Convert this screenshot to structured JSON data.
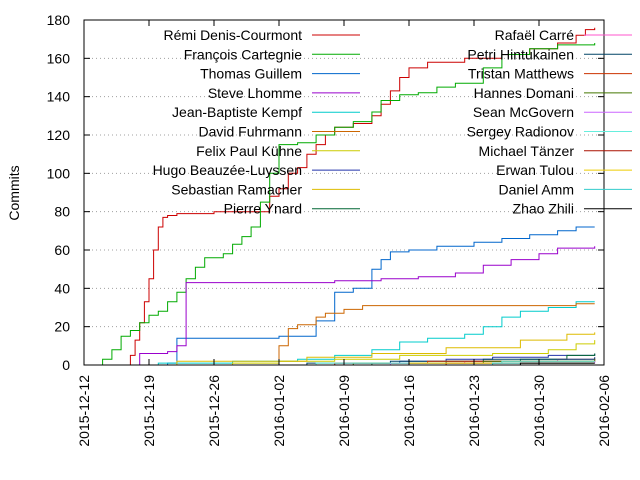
{
  "chart_data": {
    "type": "line",
    "line_shape": "step",
    "ylabel": "Commits",
    "xlabel": "",
    "title": "",
    "ylim": [
      0,
      180
    ],
    "xlim": [
      "2015-12-12",
      "2016-02-06"
    ],
    "y_ticks": [
      0,
      20,
      40,
      60,
      80,
      100,
      120,
      140,
      160,
      180
    ],
    "x_ticks": [
      "2015-12-12",
      "2015-12-19",
      "2015-12-26",
      "2016-01-02",
      "2016-01-09",
      "2016-01-16",
      "2016-01-23",
      "2016-01-30",
      "2016-02-06"
    ],
    "grid": "horizontal dotted at y ticks",
    "legend": "inside plot, top, two columns",
    "series": [
      {
        "name": "Rémi Denis-Courmont",
        "color": "#cc0000",
        "points": [
          [
            "2015-12-17",
            0
          ],
          [
            "2015-12-17",
            5
          ],
          [
            "2015-12-17.5",
            13
          ],
          [
            "2015-12-18",
            22
          ],
          [
            "2015-12-18.5",
            33
          ],
          [
            "2015-12-19",
            45
          ],
          [
            "2015-12-19.5",
            60
          ],
          [
            "2015-12-20",
            72
          ],
          [
            "2015-12-20.5",
            77
          ],
          [
            "2015-12-21",
            78
          ],
          [
            "2015-12-22",
            79
          ],
          [
            "2015-12-26",
            80
          ],
          [
            "2015-12-31",
            80
          ],
          [
            "2016-01-01",
            88
          ],
          [
            "2016-01-02",
            92
          ],
          [
            "2016-01-03",
            100
          ],
          [
            "2016-01-04",
            103
          ],
          [
            "2016-01-05",
            110
          ],
          [
            "2016-01-06",
            115
          ],
          [
            "2016-01-07",
            120
          ],
          [
            "2016-01-08",
            124
          ],
          [
            "2016-01-10",
            126
          ],
          [
            "2016-01-12",
            130
          ],
          [
            "2016-01-13",
            136
          ],
          [
            "2016-01-14",
            143
          ],
          [
            "2016-01-15",
            150
          ],
          [
            "2016-01-16",
            155
          ],
          [
            "2016-01-18",
            158
          ],
          [
            "2016-01-22",
            160
          ],
          [
            "2016-01-26",
            162
          ],
          [
            "2016-01-29",
            165
          ],
          [
            "2016-02-01",
            168
          ],
          [
            "2016-02-03",
            172
          ],
          [
            "2016-02-04",
            175
          ],
          [
            "2016-02-05",
            176
          ]
        ]
      },
      {
        "name": "François Cartegnie",
        "color": "#00aa00",
        "points": [
          [
            "2015-12-14",
            0
          ],
          [
            "2015-12-14",
            3
          ],
          [
            "2015-12-15",
            8
          ],
          [
            "2015-12-16",
            15
          ],
          [
            "2015-12-17",
            18
          ],
          [
            "2015-12-18",
            22
          ],
          [
            "2015-12-19",
            26
          ],
          [
            "2015-12-20",
            28
          ],
          [
            "2015-12-21",
            33
          ],
          [
            "2015-12-22",
            38
          ],
          [
            "2015-12-23",
            45
          ],
          [
            "2015-12-24",
            51
          ],
          [
            "2015-12-25",
            56
          ],
          [
            "2015-12-27",
            58
          ],
          [
            "2015-12-28",
            63
          ],
          [
            "2015-12-29",
            67
          ],
          [
            "2015-12-30",
            72
          ],
          [
            "2015-12-31",
            85
          ],
          [
            "2016-01-01",
            100
          ],
          [
            "2016-01-02",
            115
          ],
          [
            "2016-01-04",
            116
          ],
          [
            "2016-01-06",
            120
          ],
          [
            "2016-01-08",
            124
          ],
          [
            "2016-01-10",
            127
          ],
          [
            "2016-01-12",
            132
          ],
          [
            "2016-01-13",
            138
          ],
          [
            "2016-01-15",
            141
          ],
          [
            "2016-01-17",
            142
          ],
          [
            "2016-01-19",
            145
          ],
          [
            "2016-01-21",
            147
          ],
          [
            "2016-01-24",
            155
          ],
          [
            "2016-01-26",
            162
          ],
          [
            "2016-01-29",
            165
          ],
          [
            "2016-02-01",
            167
          ],
          [
            "2016-02-05",
            168
          ]
        ]
      },
      {
        "name": "Thomas Guillem",
        "color": "#0066cc",
        "points": [
          [
            "2015-12-17",
            0
          ],
          [
            "2015-12-21",
            1
          ],
          [
            "2015-12-22",
            14
          ],
          [
            "2016-01-02",
            15
          ],
          [
            "2016-01-06",
            23
          ],
          [
            "2016-01-08",
            38
          ],
          [
            "2016-01-10",
            40
          ],
          [
            "2016-01-12",
            50
          ],
          [
            "2016-01-13",
            55
          ],
          [
            "2016-01-14",
            59
          ],
          [
            "2016-01-16",
            60
          ],
          [
            "2016-01-19",
            62
          ],
          [
            "2016-01-23",
            64
          ],
          [
            "2016-01-26",
            66
          ],
          [
            "2016-01-29",
            68
          ],
          [
            "2016-02-01",
            70
          ],
          [
            "2016-02-03",
            72
          ],
          [
            "2016-02-05",
            72
          ]
        ]
      },
      {
        "name": "Steve Lhomme",
        "color": "#9900cc",
        "points": [
          [
            "2015-12-17",
            0
          ],
          [
            "2015-12-18",
            6
          ],
          [
            "2015-12-21",
            7
          ],
          [
            "2015-12-22",
            10
          ],
          [
            "2015-12-23",
            43
          ],
          [
            "2016-01-02",
            43
          ],
          [
            "2016-01-08",
            44
          ],
          [
            "2016-01-13",
            45
          ],
          [
            "2016-01-17",
            46
          ],
          [
            "2016-01-21",
            48
          ],
          [
            "2016-01-24",
            52
          ],
          [
            "2016-01-27",
            55
          ],
          [
            "2016-01-30",
            58
          ],
          [
            "2016-02-01",
            61
          ],
          [
            "2016-02-05",
            62
          ]
        ]
      },
      {
        "name": "Jean-Baptiste Kempf",
        "color": "#00cccc",
        "points": [
          [
            "2015-12-14",
            0
          ],
          [
            "2015-12-20",
            1
          ],
          [
            "2015-12-28",
            2
          ],
          [
            "2016-01-04",
            3
          ],
          [
            "2016-01-08",
            5
          ],
          [
            "2016-01-12",
            8
          ],
          [
            "2016-01-15",
            12
          ],
          [
            "2016-01-18",
            14
          ],
          [
            "2016-01-22",
            16
          ],
          [
            "2016-01-24",
            20
          ],
          [
            "2016-01-26",
            25
          ],
          [
            "2016-01-28",
            28
          ],
          [
            "2016-01-31",
            30
          ],
          [
            "2016-02-03",
            33
          ],
          [
            "2016-02-05",
            33
          ]
        ]
      },
      {
        "name": "David Fuhrmann",
        "color": "#cc6600",
        "points": [
          [
            "2015-12-18",
            0
          ],
          [
            "2016-01-02",
            0
          ],
          [
            "2016-01-02",
            10
          ],
          [
            "2016-01-03",
            19
          ],
          [
            "2016-01-04",
            21
          ],
          [
            "2016-01-06",
            25
          ],
          [
            "2016-01-07",
            27
          ],
          [
            "2016-01-09",
            29
          ],
          [
            "2016-01-11",
            31
          ],
          [
            "2016-02-03",
            32
          ],
          [
            "2016-02-05",
            32
          ]
        ]
      },
      {
        "name": "Felix Paul Kühne",
        "color": "#cccc00",
        "points": [
          [
            "2015-12-18",
            0
          ],
          [
            "2015-12-28",
            1
          ],
          [
            "2016-01-02",
            2
          ],
          [
            "2016-01-08",
            3
          ],
          [
            "2016-01-15",
            5
          ],
          [
            "2016-01-25",
            6
          ],
          [
            "2016-01-31",
            8
          ],
          [
            "2016-02-03",
            11
          ],
          [
            "2016-02-05",
            13
          ]
        ]
      },
      {
        "name": "Hugo Beauzée-Luyssen",
        "color": "#2233aa",
        "points": [
          [
            "2015-12-18",
            0
          ],
          [
            "2016-01-08",
            1
          ],
          [
            "2016-01-15",
            2
          ],
          [
            "2016-01-20",
            3
          ],
          [
            "2016-01-25",
            4
          ],
          [
            "2016-01-31",
            5
          ],
          [
            "2016-02-05",
            6
          ]
        ]
      },
      {
        "name": "Sebastian Ramacher",
        "color": "#ddbb00",
        "points": [
          [
            "2015-12-18",
            0
          ],
          [
            "2015-12-22",
            2
          ],
          [
            "2016-01-05",
            4
          ],
          [
            "2016-01-12",
            6
          ],
          [
            "2016-01-20",
            9
          ],
          [
            "2016-01-28",
            13
          ],
          [
            "2016-02-02",
            16
          ],
          [
            "2016-02-05",
            17
          ]
        ]
      },
      {
        "name": "Pierre Ynard",
        "color": "#006633",
        "points": [
          [
            "2015-12-18",
            0
          ],
          [
            "2016-01-12",
            1
          ],
          [
            "2016-01-20",
            2
          ],
          [
            "2016-01-28",
            3
          ],
          [
            "2016-02-02",
            5
          ],
          [
            "2016-02-05",
            6
          ]
        ]
      },
      {
        "name": "Rafaël Carré",
        "color": "#ff55cc",
        "points": [
          [
            "2015-12-18",
            0
          ],
          [
            "2016-01-10",
            1
          ],
          [
            "2016-01-22",
            2
          ],
          [
            "2016-02-01",
            3
          ],
          [
            "2016-02-05",
            4
          ]
        ]
      },
      {
        "name": "Petri Hintukainen",
        "color": "#004466",
        "points": [
          [
            "2015-12-18",
            0
          ],
          [
            "2016-01-05",
            1
          ],
          [
            "2016-01-14",
            2
          ],
          [
            "2016-01-24",
            3
          ],
          [
            "2016-02-05",
            4
          ]
        ]
      },
      {
        "name": "Tristan Matthews",
        "color": "#cc3300",
        "points": [
          [
            "2015-12-18",
            0
          ],
          [
            "2016-01-08",
            1
          ],
          [
            "2016-01-18",
            2
          ],
          [
            "2016-02-05",
            3
          ]
        ]
      },
      {
        "name": "Hannes Domani",
        "color": "#447700",
        "points": [
          [
            "2015-12-18",
            0
          ],
          [
            "2016-01-10",
            1
          ],
          [
            "2016-01-24",
            2
          ],
          [
            "2016-02-05",
            3
          ]
        ]
      },
      {
        "name": "Sean McGovern",
        "color": "#cc66ff",
        "points": [
          [
            "2015-12-18",
            0
          ],
          [
            "2016-01-14",
            1
          ],
          [
            "2016-02-05",
            2
          ]
        ]
      },
      {
        "name": "Sergey Radionov",
        "color": "#66eedd",
        "points": [
          [
            "2015-12-18",
            0
          ],
          [
            "2016-01-06",
            1
          ],
          [
            "2016-01-26",
            2
          ],
          [
            "2016-02-05",
            2
          ]
        ]
      },
      {
        "name": "Michael Tänzer",
        "color": "#aa1100",
        "points": [
          [
            "2015-12-18",
            0
          ],
          [
            "2016-01-20",
            1
          ],
          [
            "2016-02-05",
            1
          ]
        ]
      },
      {
        "name": "Erwan Tulou",
        "color": "#eecc00",
        "points": [
          [
            "2015-12-18",
            0
          ],
          [
            "2016-01-16",
            1
          ],
          [
            "2016-02-05",
            1
          ]
        ]
      },
      {
        "name": "Daniel Amm",
        "color": "#33cccc",
        "points": [
          [
            "2015-12-18",
            0
          ],
          [
            "2016-01-25",
            1
          ],
          [
            "2016-02-05",
            1
          ]
        ]
      },
      {
        "name": "Zhao Zhili",
        "color": "#000000",
        "points": [
          [
            "2015-12-18",
            0
          ],
          [
            "2016-01-28",
            1
          ],
          [
            "2016-02-05",
            1
          ]
        ]
      }
    ]
  }
}
